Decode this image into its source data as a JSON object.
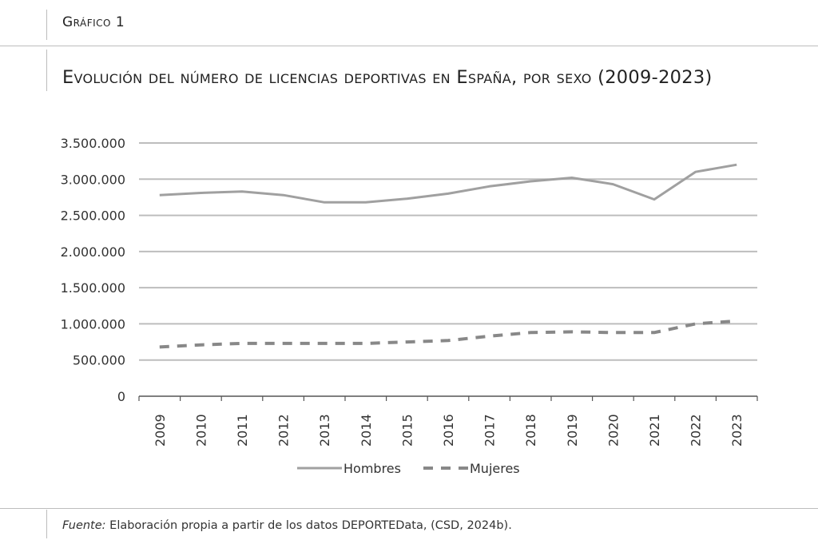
{
  "header": {
    "label": "Gráfico 1",
    "title": "Evolución del número de licencias deportivas en España, por sexo (2009-2023)"
  },
  "footer": {
    "source_lead": "Fuente:",
    "source_text": " Elaboración propia a partir de los datos DEPORTEData, (CSD, 2024b)."
  },
  "colors": {
    "hombres": "#a0a0a0",
    "mujeres": "#888888",
    "grid": "#bdbdbd",
    "axis": "#555555"
  },
  "chart_data": {
    "type": "line",
    "title": "",
    "xlabel": "",
    "ylabel": "",
    "ylim": [
      0,
      3500000
    ],
    "yticks": [
      0,
      500000,
      1000000,
      1500000,
      2000000,
      2500000,
      3000000,
      3500000
    ],
    "ytick_labels": [
      "0",
      "500.000",
      "1.000.000",
      "1.500.000",
      "2.000.000",
      "2.500.000",
      "3.000.000",
      "3.500.000"
    ],
    "grid": true,
    "legend_position": "bottom",
    "x": [
      "2009",
      "2010",
      "2011",
      "2012",
      "2013",
      "2014",
      "2015",
      "2016",
      "2017",
      "2018",
      "2019",
      "2020",
      "2021",
      "2022",
      "2023"
    ],
    "series": [
      {
        "name": "Hombres",
        "style": "solid",
        "values": [
          2780000,
          2810000,
          2830000,
          2780000,
          2680000,
          2680000,
          2730000,
          2800000,
          2900000,
          2970000,
          3020000,
          2930000,
          2720000,
          3100000,
          3200000
        ]
      },
      {
        "name": "Mujeres",
        "style": "dashed",
        "values": [
          680000,
          710000,
          730000,
          730000,
          730000,
          730000,
          750000,
          770000,
          830000,
          880000,
          890000,
          880000,
          880000,
          1000000,
          1040000
        ]
      }
    ]
  }
}
